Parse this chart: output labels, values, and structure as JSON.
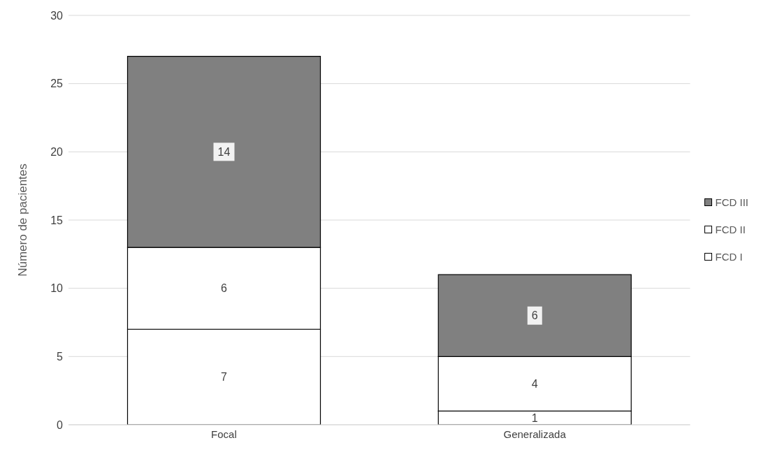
{
  "chart_data": {
    "type": "bar",
    "stacked": true,
    "categories": [
      "Focal",
      "Generalizada"
    ],
    "ylabel": "Número de pacientes",
    "ylim": [
      0,
      30
    ],
    "yticks": [
      0,
      5,
      10,
      15,
      20,
      25,
      30
    ],
    "grid": "y",
    "legend": "right",
    "data_labels": true,
    "series": [
      {
        "name": "FCD I",
        "color": "#ffffff",
        "values": [
          7,
          1
        ]
      },
      {
        "name": "FCD II",
        "color": "#ffffff",
        "values": [
          6,
          4
        ]
      },
      {
        "name": "FCD III",
        "color": "#808080",
        "values": [
          14,
          6
        ]
      }
    ]
  }
}
